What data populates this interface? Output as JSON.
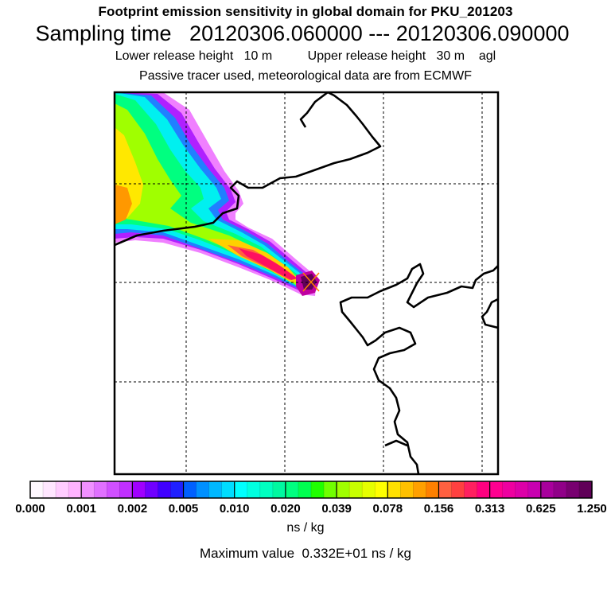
{
  "title_line1": "Footprint emission sensitivity in global domain for PKU_201203",
  "title_line2": "Sampling time   20120306.060000 --- 20120306.090000",
  "title_line3": "Lower release height   10 m          Upper release height   30 m    agl",
  "title_line4": "Passive tracer used, meteorological data are from ECMWF",
  "units_label": "ns / kg",
  "max_value_text": "Maximum value  0.332E+01 ns / kg",
  "chart_data": {
    "type": "heatmap",
    "title": "Footprint emission sensitivity in global domain for PKU_201203",
    "colorbar": {
      "tick_labels": [
        "0.000",
        "0.001",
        "0.002",
        "0.005",
        "0.010",
        "0.020",
        "0.039",
        "0.078",
        "0.156",
        "0.313",
        "0.625",
        "1.250"
      ],
      "tick_values": [
        0.0,
        0.001,
        0.002,
        0.005,
        0.01,
        0.02,
        0.039,
        0.078,
        0.156,
        0.313,
        0.625,
        1.25
      ],
      "colors": [
        "#fff8ff",
        "#ffe6ff",
        "#ffccff",
        "#ffb3ff",
        "#f090ff",
        "#e070ff",
        "#d050ff",
        "#c030ff",
        "#a000ff",
        "#7000ff",
        "#4000ff",
        "#2020ff",
        "#0060ff",
        "#0090ff",
        "#00b8ff",
        "#00ddff",
        "#00ffff",
        "#00ffe0",
        "#00ffc0",
        "#00f8a0",
        "#00ff80",
        "#00ff50",
        "#20ff00",
        "#70ff00",
        "#a0ff00",
        "#c8ff00",
        "#e6ff00",
        "#ffff00",
        "#ffe000",
        "#ffc000",
        "#ffa000",
        "#ff8000",
        "#ff6040",
        "#ff4040",
        "#ff2060",
        "#ff0080",
        "#ff0090",
        "#ee00a0",
        "#dd00a8",
        "#c800b0",
        "#a8009c",
        "#900088",
        "#780070",
        "#600058"
      ]
    },
    "maximum_value": 3.32,
    "units": "ns / kg",
    "release_point_marker": "x",
    "grid": true
  }
}
